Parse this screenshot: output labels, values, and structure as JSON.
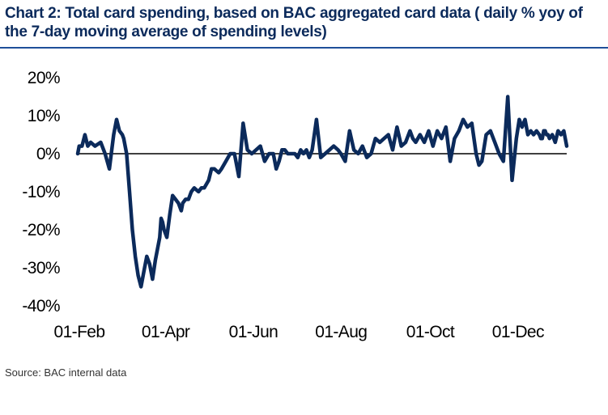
{
  "title": "Chart 2: Total card spending, based on BAC aggregated card data ( daily % yoy of the 7-day moving average of spending levels)",
  "source": "Source:  BAC internal data",
  "colors": {
    "line": "#0b2a5b",
    "title": "#0b2a5b",
    "rule": "#1f4f99",
    "zero_line": "#000000"
  },
  "chart_data": {
    "type": "line",
    "title": "Total card spending, based on BAC aggregated card data (daily % yoy of the 7-day moving average of spending levels)",
    "xlabel": "",
    "ylabel": "% yoy",
    "ylim": [
      -40,
      20
    ],
    "yticks": [
      20,
      10,
      0,
      -10,
      -20,
      -30,
      -40
    ],
    "ytick_labels": [
      "20%",
      "10%",
      "0%",
      "-10%",
      "-20%",
      "-30%",
      "-40%"
    ],
    "xlim": [
      0,
      340
    ],
    "xticks": [
      0,
      60,
      121,
      182,
      244,
      305
    ],
    "xtick_labels": [
      "01-Feb",
      "01-Apr",
      "01-Jun",
      "01-Aug",
      "01-Oct",
      "01-Dec"
    ],
    "grid": false,
    "legend": "none",
    "series": [
      {
        "name": "Total card spending",
        "x": [
          0,
          1,
          3,
          5,
          7,
          9,
          12,
          16,
          19,
          22,
          25,
          27,
          29,
          31,
          32,
          34,
          36,
          38,
          40,
          42,
          44,
          46,
          48,
          50,
          52,
          54,
          55,
          57,
          58,
          59,
          60,
          62,
          64,
          66,
          68,
          70,
          72,
          73,
          75,
          77,
          79,
          81,
          84,
          86,
          88,
          91,
          93,
          95,
          98,
          100,
          103,
          106,
          109,
          112,
          115,
          118,
          121,
          124,
          127,
          130,
          133,
          136,
          138,
          140,
          142,
          144,
          146,
          149,
          151,
          153,
          155,
          157,
          159,
          161,
          163,
          166,
          169,
          172,
          175,
          178,
          181,
          183,
          186,
          189,
          192,
          195,
          198,
          201,
          204,
          207,
          210,
          213,
          216,
          219,
          222,
          225,
          228,
          231,
          233,
          235,
          238,
          241,
          244,
          247,
          250,
          253,
          256,
          259,
          262,
          265,
          268,
          271,
          274,
          277,
          279,
          281,
          284,
          287,
          290,
          293,
          296,
          299,
          302,
          305,
          307,
          309,
          311,
          313,
          315,
          317,
          319,
          321,
          322,
          323,
          324,
          325,
          326,
          327,
          328,
          330,
          332,
          334,
          336,
          338,
          340
        ],
        "values": [
          0,
          2,
          2,
          5,
          2,
          3,
          2,
          3,
          0,
          -4,
          5,
          9,
          6,
          5,
          4,
          0,
          -10,
          -20,
          -27,
          -32,
          -35,
          -31,
          -27,
          -29,
          -33,
          -28,
          -26,
          -22,
          -17,
          -18,
          -20,
          -22,
          -16,
          -11,
          -12,
          -13,
          -15,
          -13,
          -12,
          -12,
          -10,
          -9,
          -10,
          -9,
          -9,
          -7,
          -4,
          -4,
          -5,
          -4,
          -2,
          0,
          0,
          -6,
          8,
          1,
          0,
          1,
          2,
          -2,
          0,
          0,
          -4,
          -2,
          1,
          1,
          0,
          0,
          0,
          -1,
          1,
          0,
          1,
          -1,
          1,
          9,
          -1,
          0,
          1,
          2,
          1,
          0,
          -2,
          6,
          1,
          0,
          2,
          -1,
          0,
          4,
          3,
          4,
          5,
          1,
          7,
          2,
          3,
          6,
          4,
          3,
          5,
          3,
          6,
          2,
          6,
          4,
          7,
          -2,
          4,
          6,
          9,
          7,
          8,
          0,
          -3,
          -2,
          5,
          6,
          3,
          0,
          -2,
          15,
          -7,
          4,
          9,
          7,
          9,
          5,
          6,
          5,
          6,
          5,
          4,
          4,
          6,
          6,
          5,
          5,
          4,
          5,
          3,
          6,
          5,
          6,
          2
        ]
      }
    ]
  }
}
